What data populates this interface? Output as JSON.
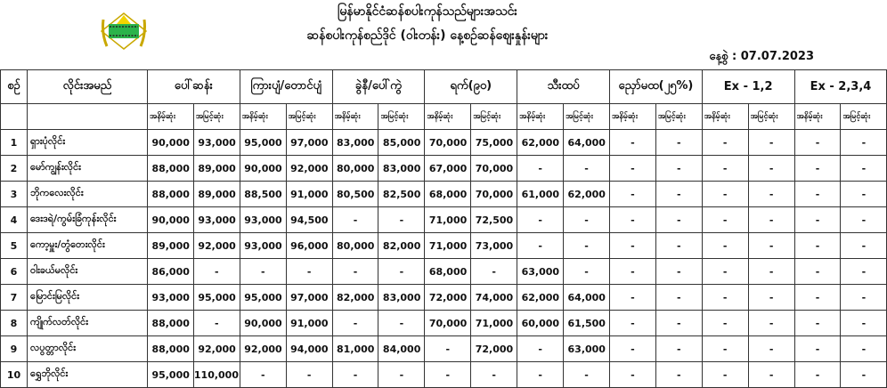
{
  "header": {
    "title_line1": "မြန်မာနိုင်ငံဆန်စပါးကုန်သည်များအသင်း",
    "title_line2": "ဆန်စပါးကုန်စည်ဒိုင် (ဝါးတန်း) နေ့စဉ်ဆန်စျေးနှုန်းများ",
    "logo_text": "မြန်မာနိုင်ငံဆန်စပါးကုန်သည်များအသင်း",
    "date_label": "နေ့စွဲ",
    "date_value": ": 07.07.2023"
  },
  "table": {
    "col_seq": "စဉ်",
    "col_name": "လိုင်းအမည်",
    "groups": [
      "ပေါ်ဆန်း",
      "ကြားပျံ/တောင်ပျံ",
      "ခွဲနီ/ပေါ်ကွဲ",
      "ရက်(၉၀)",
      "သီးထပ်",
      "ညှော်မထ(၂၅%)",
      "Ex - 1,2",
      "Ex - 2,3,4"
    ],
    "sub_low": "အနိမ့်ဆုံး",
    "sub_high": "အမြင့်ဆုံး",
    "rows": [
      {
        "no": "1",
        "name": "ရှားပုံလိုင်း",
        "values": [
          "90,000",
          "93,000",
          "95,000",
          "97,000",
          "83,000",
          "85,000",
          "70,000",
          "75,000",
          "62,000",
          "64,000",
          "-",
          "-",
          "-",
          "-",
          "-",
          "-"
        ]
      },
      {
        "no": "2",
        "name": "မော်ကျွန်းလိုင်း",
        "values": [
          "88,000",
          "89,000",
          "90,000",
          "92,000",
          "80,000",
          "83,000",
          "67,000",
          "70,000",
          "-",
          "-",
          "-",
          "-",
          "-",
          "-",
          "-",
          "-"
        ]
      },
      {
        "no": "3",
        "name": "ဘိုကလေးလိုင်း",
        "values": [
          "88,000",
          "89,000",
          "88,500",
          "91,000",
          "80,500",
          "82,500",
          "68,000",
          "70,000",
          "61,000",
          "62,000",
          "-",
          "-",
          "-",
          "-",
          "-",
          "-"
        ]
      },
      {
        "no": "4",
        "name": "ဒေးဒရဲ/ကွမ်းခြံကုန်းလိုင်း",
        "values": [
          "90,000",
          "93,000",
          "93,000",
          "94,500",
          "-",
          "-",
          "71,000",
          "72,500",
          "-",
          "-",
          "-",
          "-",
          "-",
          "-",
          "-",
          "-"
        ]
      },
      {
        "no": "5",
        "name": "ကော့မှူး/တွံတေးလိုင်း",
        "values": [
          "89,000",
          "92,000",
          "93,000",
          "96,000",
          "80,000",
          "82,000",
          "71,000",
          "73,000",
          "-",
          "-",
          "-",
          "-",
          "-",
          "-",
          "-",
          "-"
        ]
      },
      {
        "no": "6",
        "name": "ဝါးခယ်မလိုင်း",
        "values": [
          "86,000",
          "-",
          "-",
          "-",
          "-",
          "-",
          "68,000",
          "-",
          "63,000",
          "-",
          "-",
          "-",
          "-",
          "-",
          "-",
          "-"
        ]
      },
      {
        "no": "7",
        "name": "မြောင်းမြလိုင်း",
        "values": [
          "93,000",
          "95,000",
          "95,000",
          "97,000",
          "82,000",
          "83,000",
          "72,000",
          "74,000",
          "62,000",
          "64,000",
          "-",
          "-",
          "-",
          "-",
          "-",
          "-"
        ]
      },
      {
        "no": "8",
        "name": "ကျိုက်လတ်လိုင်း",
        "values": [
          "88,000",
          "-",
          "90,000",
          "91,000",
          "-",
          "-",
          "70,000",
          "71,000",
          "60,000",
          "61,500",
          "-",
          "-",
          "-",
          "-",
          "-",
          "-"
        ]
      },
      {
        "no": "9",
        "name": "လပွတ္တာလိုင်း",
        "values": [
          "88,000",
          "92,000",
          "92,000",
          "94,000",
          "81,000",
          "84,000",
          "-",
          "72,000",
          "-",
          "63,000",
          "-",
          "-",
          "-",
          "-",
          "-",
          "-"
        ]
      },
      {
        "no": "10",
        "name": "ရွှေဘိုလိုင်း",
        "values": [
          "95,000",
          "110,000",
          "-",
          "-",
          "-",
          "-",
          "-",
          "-",
          "-",
          "-",
          "-",
          "-",
          "-",
          "-",
          "-",
          "-"
        ]
      }
    ]
  }
}
